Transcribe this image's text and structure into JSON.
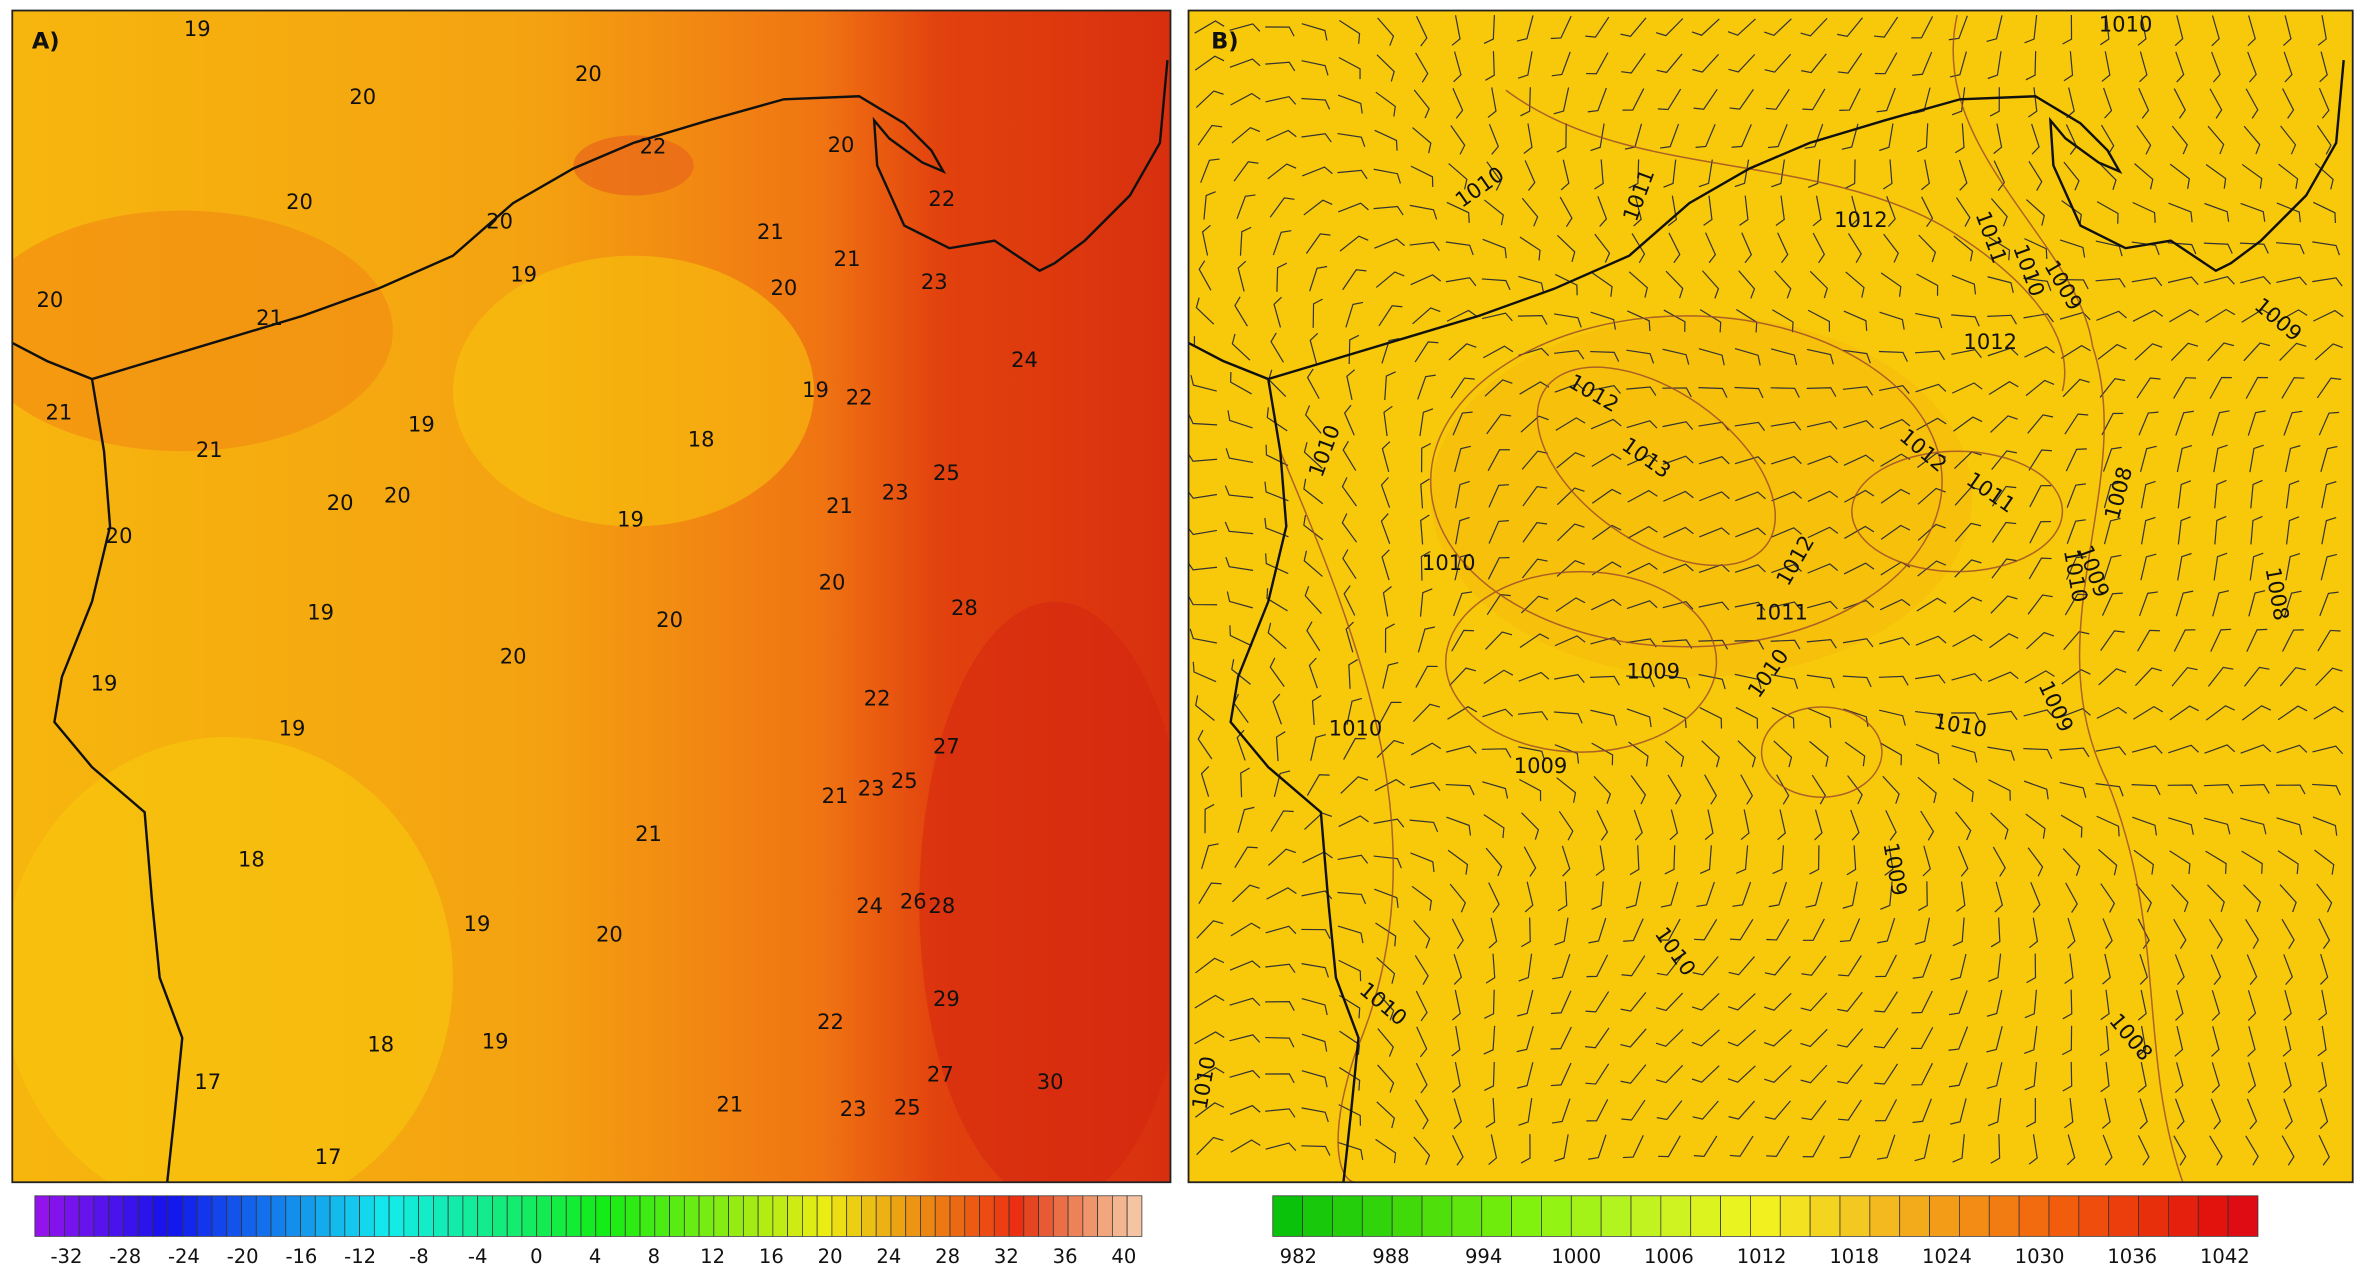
{
  "panels": [
    {
      "label": "A)",
      "contour_labels": [
        19,
        20,
        20,
        22,
        20,
        22,
        20,
        20,
        21,
        21,
        19,
        20,
        23,
        20,
        21,
        19,
        22,
        24,
        21,
        19,
        18,
        21,
        25,
        23,
        20,
        20,
        21,
        19,
        20,
        20,
        28,
        20,
        19,
        20,
        19,
        22,
        19,
        27,
        25,
        21,
        23,
        21,
        18,
        24,
        26,
        28,
        19,
        20,
        29,
        22,
        18,
        19,
        30,
        27,
        17,
        23,
        25,
        21,
        17
      ],
      "colorbar_ticks": [
        -32,
        -28,
        -24,
        -20,
        -16,
        -12,
        -8,
        -4,
        0,
        4,
        8,
        12,
        16,
        20,
        24,
        28,
        32,
        36,
        40
      ]
    },
    {
      "label": "B)",
      "contour_labels": [
        1010,
        1010,
        1011,
        1012,
        1011,
        1010,
        1009,
        1012,
        1009,
        1012,
        1013,
        1012,
        1011,
        1008,
        1010,
        1010,
        1012,
        1011,
        1009,
        1010,
        1008,
        1009,
        1010,
        1010,
        1009,
        1009,
        1010,
        1009,
        1010,
        1010,
        1008,
        1010
      ],
      "colorbar_ticks": [
        982,
        988,
        994,
        1000,
        1006,
        1012,
        1018,
        1024,
        1030,
        1036,
        1042
      ]
    }
  ]
}
